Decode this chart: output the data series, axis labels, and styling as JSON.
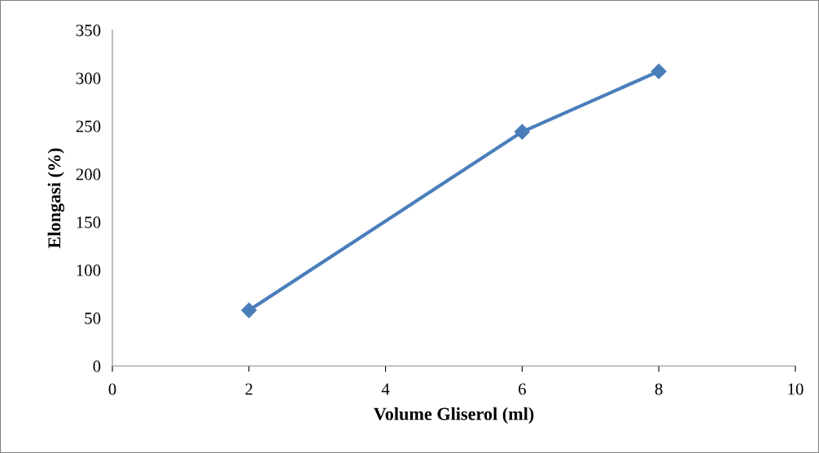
{
  "chart_data": {
    "type": "line",
    "xlabel": "Volume Gliserol (ml)",
    "ylabel": "Elongasi (%)",
    "x": [
      2,
      6,
      8
    ],
    "series": [
      {
        "color": "#4a7ebb",
        "values": [
          58,
          244,
          307
        ]
      }
    ],
    "xlim": [
      0,
      10
    ],
    "xticks": [
      0,
      2,
      4,
      6,
      8,
      10
    ],
    "ylim": [
      0,
      350
    ],
    "yticks": [
      0,
      50,
      100,
      150,
      200,
      250,
      300,
      350
    ],
    "marker": "diamond",
    "line_style": "solid",
    "grid": false,
    "legend": false
  }
}
